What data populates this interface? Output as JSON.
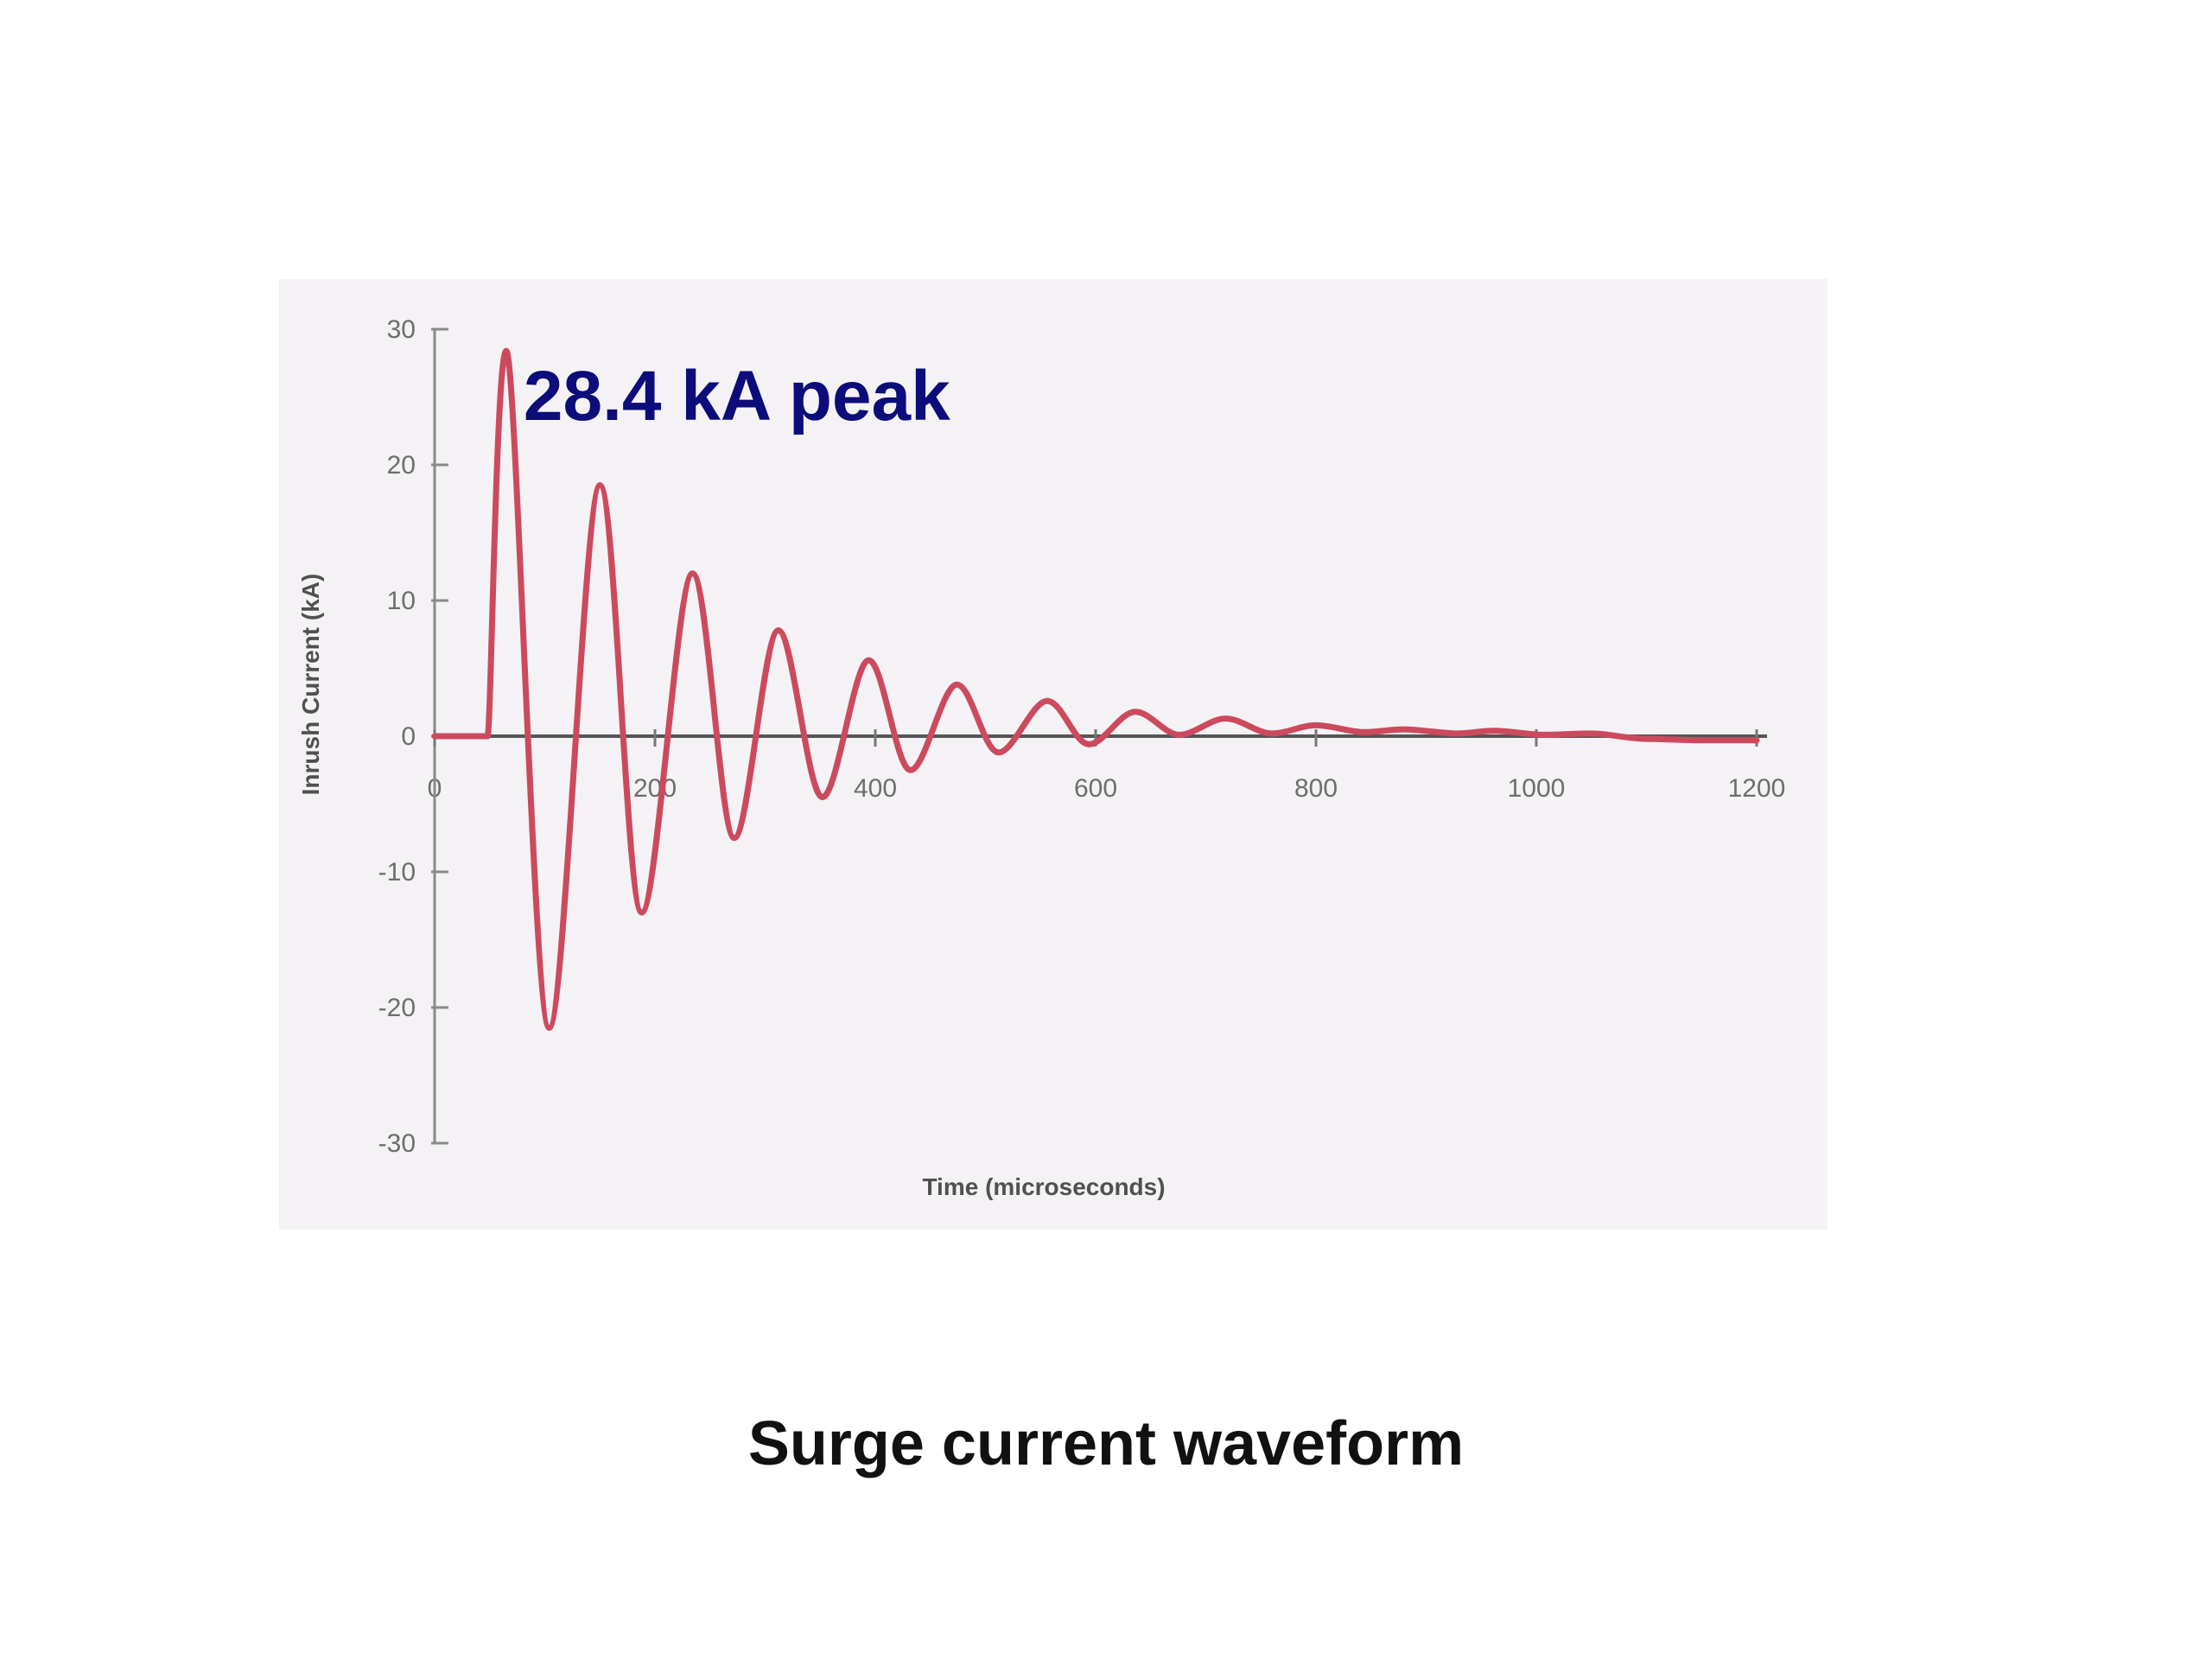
{
  "caption": "Surge current waveform",
  "chart_data": {
    "type": "line",
    "title": "",
    "xlabel": "Time (microseconds)",
    "ylabel": "Inrush Current (kA)",
    "xlim": [
      0,
      1200
    ],
    "ylim": [
      -30,
      30
    ],
    "x_ticks": [
      "0",
      "200",
      "400",
      "600",
      "800",
      "1000",
      "1200"
    ],
    "y_ticks": [
      "30",
      "20",
      "10",
      "0",
      "-10",
      "-20",
      "-30"
    ],
    "annotation": "28.4 kA peak",
    "series": [
      {
        "color": "#cc4a5e",
        "x": [
          0,
          45,
          48,
          65,
          104,
          150,
          188,
          234,
          272,
          312,
          352,
          394,
          432,
          474,
          512,
          556,
          594,
          636,
          676,
          718,
          760,
          800,
          844,
          880,
          928,
          962,
          1008,
          1050,
          1100,
          1150,
          1200
        ],
        "y": [
          0,
          0,
          0,
          28.4,
          -21.5,
          18.5,
          -13.0,
          12.0,
          -7.5,
          7.8,
          -4.5,
          5.6,
          -2.5,
          3.8,
          -1.2,
          2.6,
          -0.6,
          1.8,
          0.1,
          1.3,
          0.2,
          0.8,
          0.3,
          0.5,
          0.2,
          0.4,
          0.1,
          0.2,
          -0.2,
          -0.3,
          -0.3
        ]
      }
    ]
  }
}
